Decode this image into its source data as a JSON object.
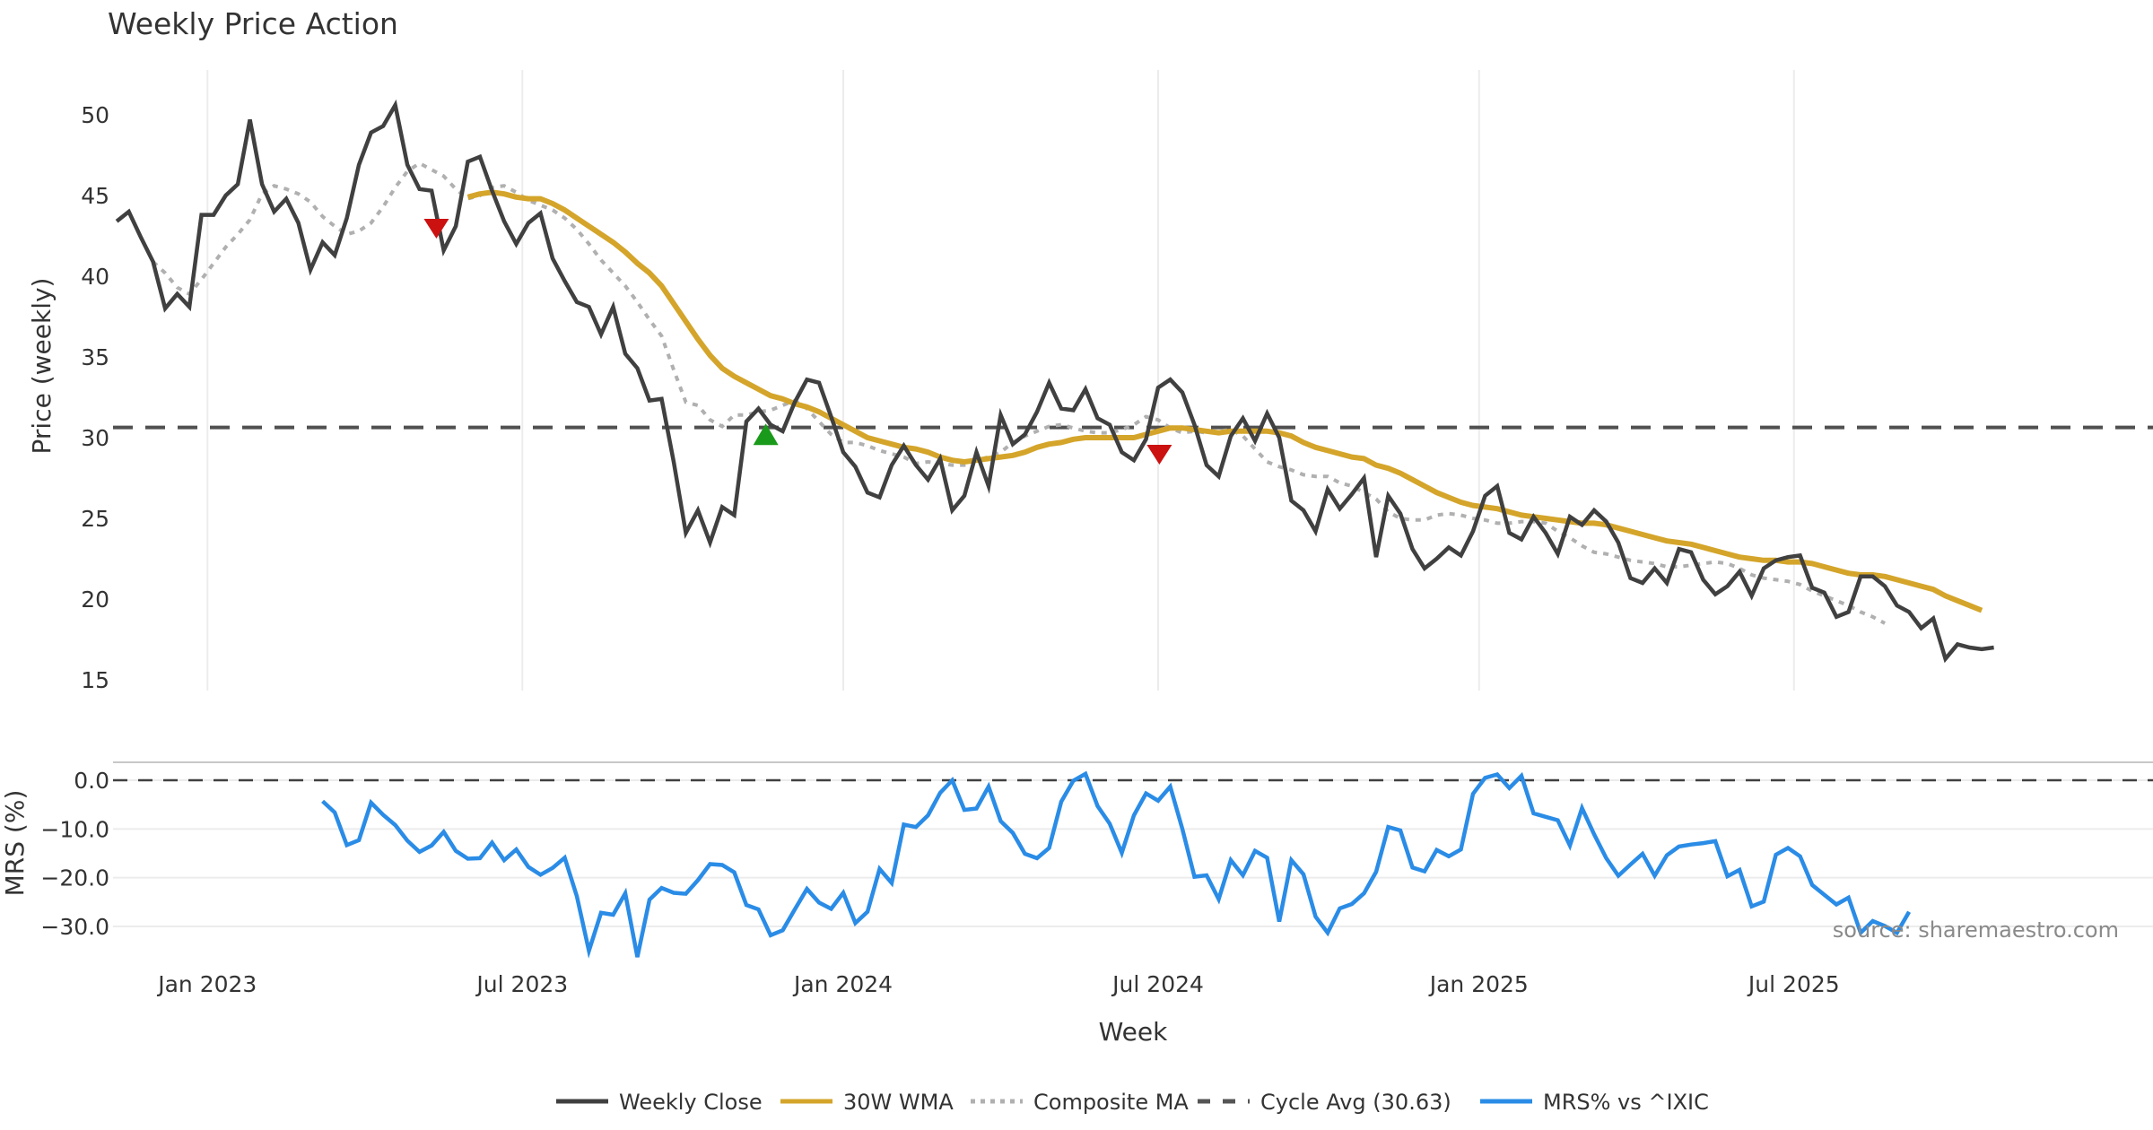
{
  "chart_data": [
    {
      "type": "line",
      "title": "Weekly Price Action",
      "ylabel": "Price (weekly)",
      "xlabel": "Week",
      "ylim": [
        14,
        53
      ],
      "yticks": [
        15,
        20,
        25,
        30,
        35,
        40,
        45,
        50
      ],
      "xticks": [
        {
          "week": 7.5,
          "label": "Jan 2023"
        },
        {
          "week": 33.5,
          "label": "Jul 2023"
        },
        {
          "week": 60,
          "label": "Jan 2024"
        },
        {
          "week": 86,
          "label": "Jul 2024"
        },
        {
          "week": 112.5,
          "label": "Jan 2025"
        },
        {
          "week": 138.5,
          "label": "Jul 2025"
        }
      ],
      "xlim": [
        -0.3,
        163
      ],
      "grid": "vertical",
      "cycle_avg": 30.63,
      "series": [
        {
          "name": "Weekly Close",
          "color": "#404040",
          "start": 0,
          "values": [
            43.4,
            44.0,
            42.4,
            40.9,
            38.0,
            38.9,
            38.1,
            43.8,
            43.8,
            45.0,
            45.7,
            49.7,
            45.7,
            44.0,
            44.8,
            43.3,
            40.4,
            42.1,
            41.3,
            43.6,
            46.9,
            48.9,
            49.3,
            50.6,
            46.9,
            45.4,
            45.3,
            41.6,
            43.1,
            47.1,
            47.4,
            45.3,
            43.4,
            42.0,
            43.3,
            43.9,
            41.1,
            39.7,
            38.4,
            38.1,
            36.4,
            38.1,
            35.2,
            34.3,
            32.3,
            32.4,
            28.5,
            24.1,
            25.5,
            23.5,
            25.7,
            25.2,
            31.0,
            31.8,
            30.8,
            30.4,
            32.2,
            33.6,
            33.4,
            31.3,
            29.1,
            28.2,
            26.6,
            26.3,
            28.3,
            29.5,
            28.3,
            27.4,
            28.7,
            25.5,
            26.4,
            29.1,
            27.0,
            31.4,
            29.6,
            30.2,
            31.6,
            33.4,
            31.8,
            31.7,
            33.0,
            31.2,
            30.8,
            29.1,
            28.6,
            29.9,
            33.1,
            33.6,
            32.8,
            30.8,
            28.3,
            27.6,
            30.1,
            31.2,
            29.8,
            31.5,
            30.0,
            26.1,
            25.5,
            24.2,
            26.8,
            25.6,
            26.5,
            27.5,
            22.6,
            26.4,
            25.3,
            23.1,
            21.9,
            22.5,
            23.2,
            22.7,
            24.2,
            26.4,
            27.0,
            24.1,
            23.7,
            25.1,
            24.1,
            22.8,
            25.1,
            24.6,
            25.5,
            24.8,
            23.5,
            21.3,
            21.0,
            21.9,
            21.0,
            23.1,
            22.9,
            21.2,
            20.3,
            20.8,
            21.7,
            20.2,
            21.9,
            22.4,
            22.6,
            22.7,
            20.7,
            20.4,
            18.9,
            19.2,
            21.4,
            21.4,
            20.8,
            19.6,
            19.2,
            18.2,
            18.8,
            16.3,
            17.2,
            17.0,
            16.9,
            17.0
          ]
        },
        {
          "name": "30W WMA",
          "color": "#D4A52A",
          "start": 29,
          "values": [
            44.9,
            45.1,
            45.2,
            45.1,
            44.9,
            44.8,
            44.8,
            44.5,
            44.1,
            43.6,
            43.1,
            42.6,
            42.1,
            41.5,
            40.8,
            40.2,
            39.4,
            38.3,
            37.2,
            36.1,
            35.1,
            34.3,
            33.8,
            33.4,
            33.0,
            32.6,
            32.4,
            32.1,
            31.9,
            31.6,
            31.2,
            30.8,
            30.4,
            30.0,
            29.8,
            29.6,
            29.4,
            29.3,
            29.1,
            28.8,
            28.6,
            28.5,
            28.6,
            28.7,
            28.8,
            28.9,
            29.1,
            29.4,
            29.6,
            29.7,
            29.9,
            30.0,
            30.0,
            30.0,
            30.0,
            30.0,
            30.2,
            30.4,
            30.6,
            30.6,
            30.5,
            30.4,
            30.3,
            30.4,
            30.4,
            30.4,
            30.4,
            30.3,
            30.1,
            29.7,
            29.4,
            29.2,
            29.0,
            28.8,
            28.7,
            28.3,
            28.1,
            27.8,
            27.4,
            27.0,
            26.6,
            26.3,
            26.0,
            25.8,
            25.7,
            25.6,
            25.4,
            25.2,
            25.1,
            25.0,
            24.9,
            24.8,
            24.7,
            24.7,
            24.6,
            24.4,
            24.2,
            24.0,
            23.8,
            23.6,
            23.5,
            23.4,
            23.2,
            23.0,
            22.8,
            22.6,
            22.5,
            22.4,
            22.4,
            22.3,
            22.3,
            22.2,
            22.0,
            21.8,
            21.6,
            21.5,
            21.5,
            21.4,
            21.2,
            21.0,
            20.8,
            20.6,
            20.2,
            19.9,
            19.6,
            19.3
          ]
        },
        {
          "name": "Composite MA",
          "color": "#b0b0b0",
          "start": 3,
          "values": [
            40.9,
            40.2,
            39.3,
            38.9,
            39.8,
            40.8,
            41.8,
            42.6,
            43.5,
            45.1,
            45.6,
            45.4,
            45.1,
            44.6,
            43.7,
            43.1,
            42.6,
            42.8,
            43.3,
            44.3,
            45.5,
            46.5,
            47.0,
            46.6,
            46.2,
            45.4,
            44.8,
            45.0,
            45.5,
            45.6,
            45.2,
            44.7,
            44.4,
            44.1,
            43.6,
            42.9,
            42.0,
            41.0,
            40.2,
            39.4,
            38.4,
            37.3,
            36.3,
            34.2,
            32.2,
            32.0,
            31.1,
            30.7,
            31.4,
            31.4,
            31.6,
            31.7,
            32.0,
            32.3,
            31.8,
            31.0,
            30.2,
            29.7,
            29.7,
            29.5,
            29.2,
            29.0,
            28.8,
            28.4,
            28.5,
            28.4,
            28.3,
            28.3,
            28.6,
            28.8,
            29.1,
            29.7,
            30.1,
            30.4,
            30.7,
            30.8,
            30.6,
            30.4,
            30.3,
            30.3,
            30.5,
            30.8,
            31.3,
            31.1,
            30.6,
            30.3,
            30.4,
            30.3,
            30.4,
            30.5,
            30.1,
            29.3,
            28.5,
            28.2,
            28.0,
            27.7,
            27.6,
            27.6,
            27.2,
            27.0,
            26.6,
            26.2,
            25.4,
            25.0,
            24.9,
            24.9,
            25.2,
            25.3,
            25.2,
            25.0,
            24.9,
            24.7,
            24.7,
            24.8,
            24.8,
            24.7,
            24.2,
            23.8,
            23.3,
            22.9,
            22.8,
            22.6,
            22.4,
            22.3,
            22.2,
            22.0,
            22.0,
            22.1,
            22.2,
            22.3,
            22.2,
            21.9,
            21.5,
            21.3,
            21.2,
            21.1,
            20.9,
            20.5,
            20.2,
            19.9,
            19.6,
            19.2,
            18.9,
            18.5
          ]
        }
      ],
      "signals": [
        {
          "type": "sell",
          "week": 26.4,
          "value": 43.0,
          "color": "#CC1111"
        },
        {
          "type": "buy",
          "week": 53.6,
          "value": 30.1,
          "color": "#1A9A1A"
        },
        {
          "type": "sell",
          "week": 86.1,
          "value": 29.0,
          "color": "#CC1111"
        }
      ]
    },
    {
      "type": "line",
      "ylabel": "MRS (%)",
      "ylim": [
        -38,
        3.5
      ],
      "yticks": [
        0.0,
        -10.0,
        -20.0,
        -30.0
      ],
      "ytick_labels": [
        "0.0",
        "−10.0",
        "−20.0",
        "−30.0"
      ],
      "zero_line": 0.0,
      "series": [
        {
          "name": "MRS% vs ^IXIC",
          "color": "#2A8CE6",
          "start": 17,
          "values": [
            -4.3,
            -6.6,
            -13.3,
            -12.3,
            -4.6,
            -7.1,
            -9.2,
            -12.4,
            -14.7,
            -13.4,
            -10.6,
            -14.5,
            -16.1,
            -16.0,
            -12.8,
            -16.4,
            -14.2,
            -17.8,
            -19.4,
            -18.0,
            -15.9,
            -23.8,
            -35.0,
            -27.2,
            -27.6,
            -23.2,
            -36.3,
            -24.5,
            -22.1,
            -23.1,
            -23.3,
            -20.5,
            -17.2,
            -17.4,
            -18.9,
            -25.6,
            -26.5,
            -31.8,
            -30.8,
            -26.5,
            -22.3,
            -25.1,
            -26.4,
            -23.1,
            -29.3,
            -27.0,
            -18.2,
            -21.1,
            -9.1,
            -9.6,
            -7.2,
            -2.6,
            0.0,
            -6.1,
            -5.8,
            -1.3,
            -8.4,
            -10.8,
            -15.1,
            -16.0,
            -13.9,
            -4.4,
            -0.1,
            1.3,
            -5.3,
            -8.9,
            -14.9,
            -7.2,
            -2.7,
            -4.2,
            -1.3,
            -10.0,
            -19.8,
            -19.5,
            -24.4,
            -16.4,
            -19.5,
            -14.5,
            -15.9,
            -29.0,
            -16.4,
            -19.3,
            -28.0,
            -31.3,
            -26.3,
            -25.4,
            -23.2,
            -18.8,
            -9.6,
            -10.3,
            -17.9,
            -18.7,
            -14.3,
            -15.6,
            -14.2,
            -2.8,
            0.5,
            1.2,
            -1.6,
            0.9,
            -6.8,
            -7.5,
            -8.2,
            -13.4,
            -5.7,
            -11.1,
            -16.0,
            -19.6,
            -17.3,
            -15.1,
            -19.6,
            -15.4,
            -13.6,
            -13.2,
            -12.9,
            -12.5,
            -19.7,
            -18.4,
            -25.9,
            -24.9,
            -15.3,
            -13.9,
            -15.6,
            -21.5,
            -23.5,
            -25.5,
            -24.1,
            -31.3,
            -28.9,
            -29.9,
            -31.3,
            -27.0
          ]
        }
      ]
    }
  ],
  "source": "source: sharemaestro.com",
  "legend": [
    {
      "label": "Weekly Close",
      "color": "#404040",
      "style": "solid"
    },
    {
      "label": "30W WMA",
      "color": "#D4A52A",
      "style": "solid"
    },
    {
      "label": "Composite MA",
      "color": "#b0b0b0",
      "style": "dotted"
    },
    {
      "label": "Cycle Avg (30.63)",
      "color": "#555555",
      "style": "dashed"
    },
    {
      "label": "MRS% vs ^IXIC",
      "color": "#2A8CE6",
      "style": "solid"
    }
  ]
}
